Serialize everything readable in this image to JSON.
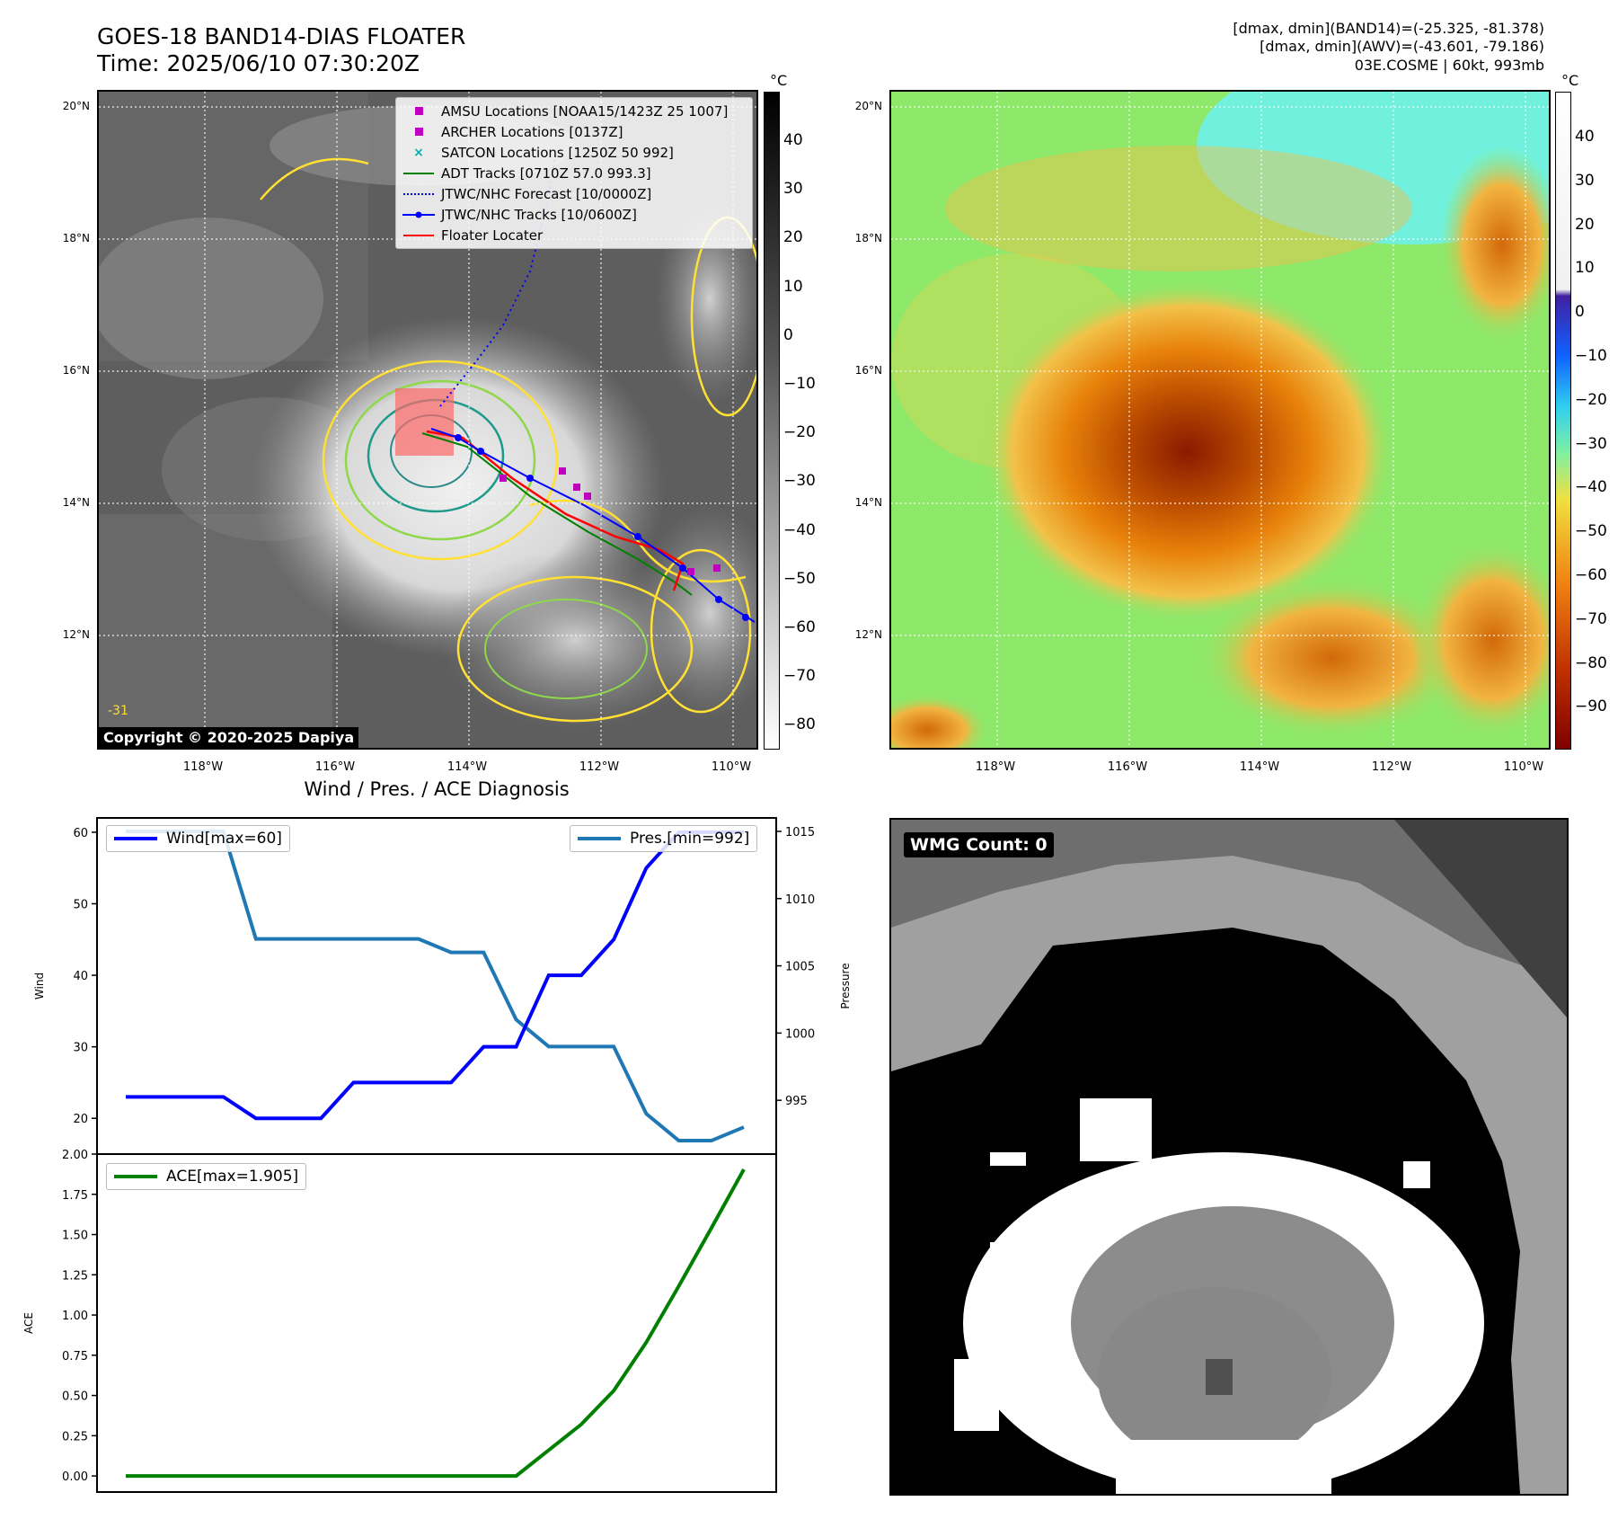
{
  "header": {
    "title": "GOES-18 BAND14-DIAS FLOATER",
    "time": "Time: 2025/06/10 07:30:20Z",
    "info_band14": "[dmax, dmin](BAND14)=(-25.325, -81.378)",
    "info_awv": "[dmax, dmin](AWV)=(-43.601, -79.186)",
    "info_storm": "03E.COSME | 60kt, 993mb"
  },
  "ir_panel": {
    "copyright": "Copyright © 2020-2025 Dapiya",
    "cbar_unit": "°C",
    "cbar_ticks": [
      "40",
      "30",
      "20",
      "10",
      "0",
      "−10",
      "−20",
      "−30",
      "−40",
      "−50",
      "−60",
      "−70",
      "−80"
    ],
    "contour_label": "-31"
  },
  "legend": [
    {
      "label": "AMSU Locations [NOAA15/1423Z 25 1007]",
      "color": "#c000c0",
      "kind": "square"
    },
    {
      "label": "ARCHER Locations [0137Z]",
      "color": "#c000c0",
      "kind": "square"
    },
    {
      "label": "SATCON Locations [1250Z 50 992]",
      "color": "#00b0b0",
      "kind": "x"
    },
    {
      "label": "ADT Tracks [0710Z 57.0 993.3]",
      "color": "#008000",
      "kind": "line"
    },
    {
      "label": "JTWC/NHC Forecast [10/0000Z]",
      "color": "#0000ff",
      "kind": "dotted"
    },
    {
      "label": "JTWC/NHC Tracks [10/0600Z]",
      "color": "#0000ff",
      "kind": "dotline"
    },
    {
      "label": "Floater Locater",
      "color": "#ff0000",
      "kind": "line"
    }
  ],
  "map_axes": {
    "lat_labels": [
      "20°N",
      "18°N",
      "16°N",
      "14°N",
      "12°N"
    ],
    "lon_labels": [
      "118°W",
      "116°W",
      "114°W",
      "112°W",
      "110°W"
    ]
  },
  "wv_panel": {
    "cbar_unit": "°C",
    "cbar_ticks": [
      "40",
      "30",
      "20",
      "10",
      "0",
      "−10",
      "−20",
      "−30",
      "−40",
      "−50",
      "−60",
      "−70",
      "−80",
      "−90"
    ]
  },
  "wmg_panel": {
    "label": "WMG Count: 0"
  },
  "diagnosis": {
    "title": "Wind / Pres. / ACE Diagnosis",
    "wind_legend": "Wind[max=60]",
    "pres_legend": "Pres.[min=992]",
    "ace_legend": "ACE[max=1.905]",
    "wind_axis_label": "Wind",
    "pres_axis_label": "Pressure",
    "ace_axis_label": "ACE",
    "colors": {
      "wind": "#0000ff",
      "pres": "#1f77b4",
      "ace": "#008000"
    }
  },
  "chart_data": [
    {
      "type": "line",
      "ylabel": "Wind",
      "ylim": [
        15,
        62
      ],
      "yticks": [
        20,
        30,
        40,
        50,
        60
      ],
      "series": [
        {
          "name": "Wind[max=60]",
          "axis": "left",
          "values": [
            23,
            23,
            23,
            23,
            20,
            20,
            20,
            25,
            25,
            25,
            25,
            30,
            30,
            40,
            40,
            45,
            55,
            60,
            60,
            60
          ]
        },
        {
          "name": "Pres.[min=992]",
          "axis": "right",
          "values": [
            1015,
            1015,
            1015,
            1015,
            1007,
            1007,
            1007,
            1007,
            1007,
            1007,
            1006,
            1006,
            1001,
            999,
            999,
            999,
            994,
            992,
            992,
            993
          ]
        }
      ],
      "y2label": "Pressure",
      "y2lim": [
        991,
        1016
      ],
      "y2ticks": [
        995,
        1000,
        1005,
        1010,
        1015
      ]
    },
    {
      "type": "line",
      "ylabel": "ACE",
      "ylim": [
        -0.1,
        2.0
      ],
      "yticks": [
        "0.00",
        "0.25",
        "0.50",
        "0.75",
        "1.00",
        "1.25",
        "1.50",
        "1.75",
        "2.00"
      ],
      "series": [
        {
          "name": "ACE[max=1.905]",
          "values": [
            0,
            0,
            0,
            0,
            0,
            0,
            0,
            0,
            0,
            0,
            0,
            0,
            0,
            0.16,
            0.32,
            0.53,
            0.83,
            1.18,
            1.54,
            1.905
          ]
        }
      ]
    }
  ]
}
